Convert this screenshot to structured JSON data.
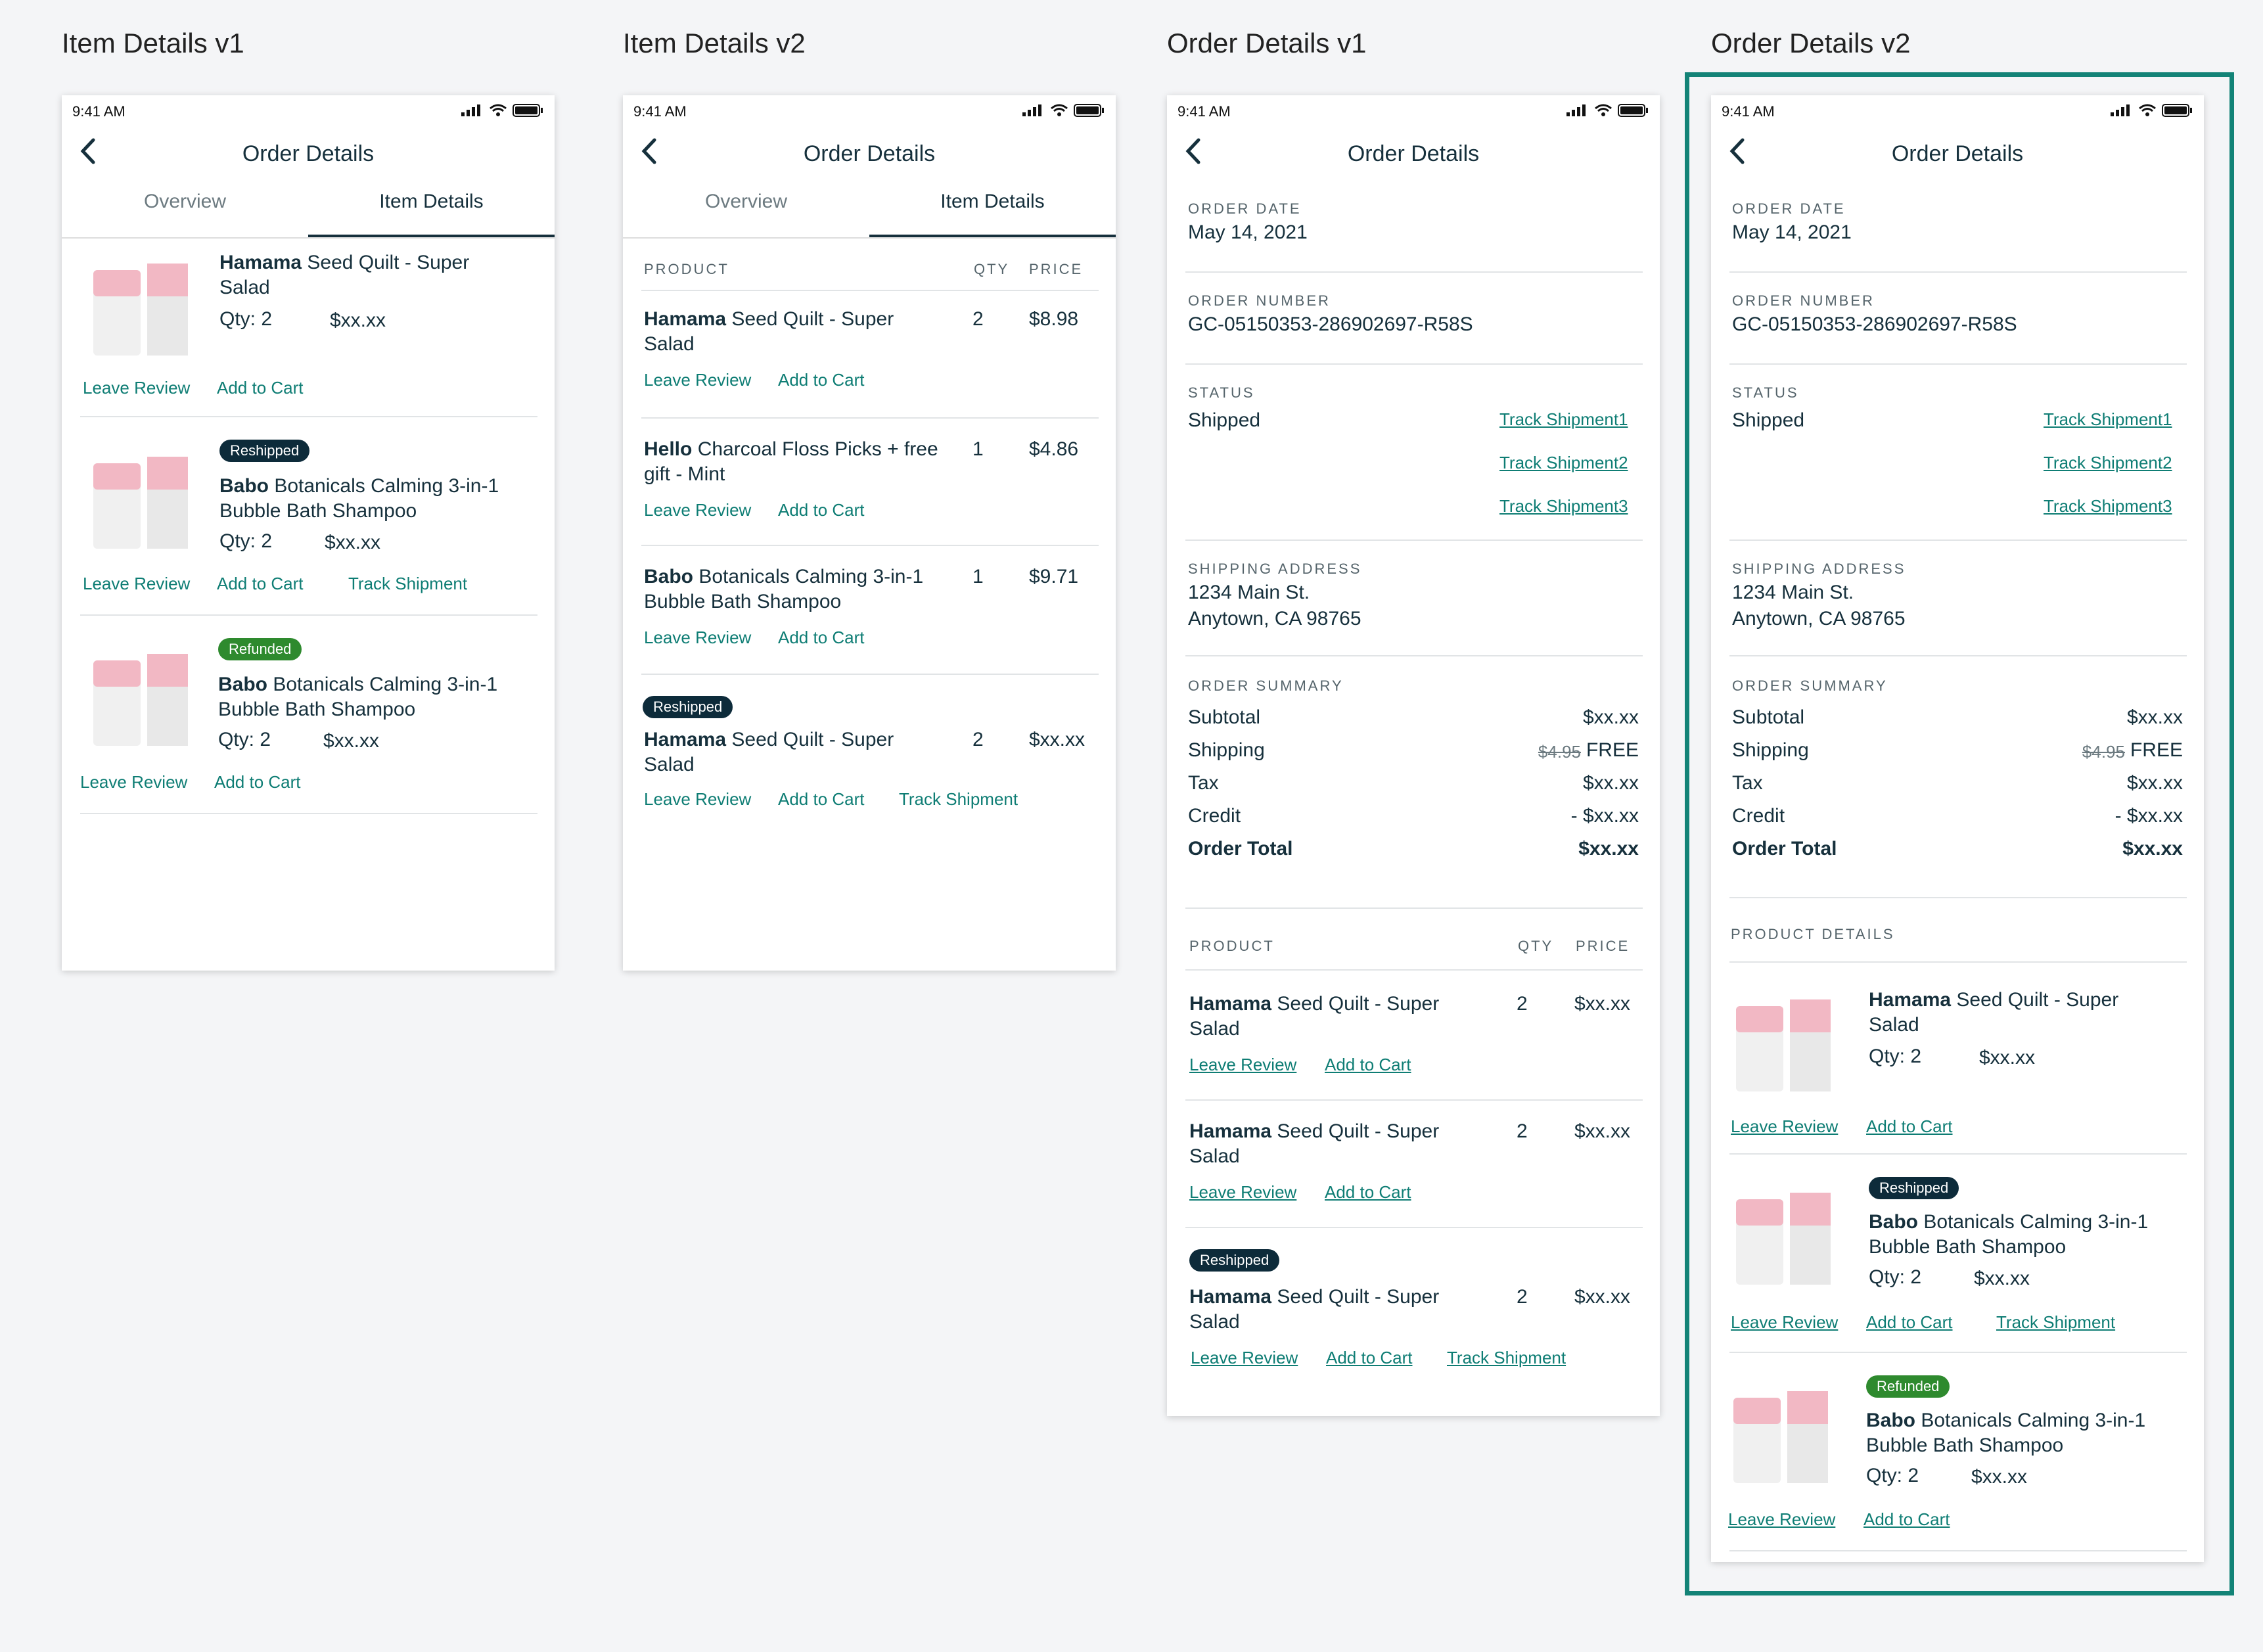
{
  "columns": [
    "Item Details v1",
    "Item Details v2",
    "Order Details v1",
    "Order Details v2"
  ],
  "status_time": "9:41 AM",
  "nav_title": "Order Details",
  "tabs": {
    "overview": "Overview",
    "items": "Item Details"
  },
  "links": {
    "review": "Leave Review",
    "cart": "Add to Cart",
    "track": "Track Shipment"
  },
  "badges": {
    "reshipped": "Reshipped",
    "refunded": "Refunded"
  },
  "headers": {
    "product": "PRODUCT",
    "qty": "QTY",
    "price": "PRICE",
    "product_details": "PRODUCT DETAILS"
  },
  "products": {
    "hamama": {
      "brand": "Hamama",
      "rest": " Seed Quilt - Super",
      "line2": "Salad"
    },
    "babo": {
      "brand": "Babo",
      "rest": " Botanicals Calming 3-in-1",
      "line2": "Bubble Bath Shampoo"
    },
    "hello": {
      "brand": "Hello",
      "rest": " Charcoal Floss Picks + free",
      "line2": "gift - Mint"
    }
  },
  "qty2": "Qty: 2",
  "price_xx": "$xx.xx",
  "v2_rows": [
    {
      "qty": "2",
      "price": "$8.98"
    },
    {
      "qty": "1",
      "price": "$4.86"
    },
    {
      "qty": "1",
      "price": "$9.71"
    },
    {
      "qty": "2",
      "price": "$xx.xx"
    }
  ],
  "order": {
    "date_label": "ORDER DATE",
    "date": "May 14, 2021",
    "number_label": "ORDER NUMBER",
    "number": "GC-05150353-286902697-R58S",
    "status_label": "STATUS",
    "status": "Shipped",
    "tracks": [
      "Track Shipment1",
      "Track Shipment2",
      "Track Shipment3"
    ],
    "address_label": "SHIPPING ADDRESS",
    "address1": "1234 Main St.",
    "address2": "Anytown, CA 98765",
    "summary_label": "ORDER SUMMARY",
    "subtotal": "Subtotal",
    "shipping": "Shipping",
    "tax": "Tax",
    "credit": "Credit",
    "total": "Order Total",
    "v_subtotal": "$xx.xx",
    "v_ship_old": "$4.95",
    "v_ship": "FREE",
    "v_tax": "$xx.xx",
    "v_credit": "- $xx.xx",
    "v_total": "$xx.xx"
  },
  "od1_rows": [
    {
      "qty": "2",
      "price": "$xx.xx"
    },
    {
      "qty": "2",
      "price": "$xx.xx"
    },
    {
      "qty": "2",
      "price": "$xx.xx"
    }
  ],
  "colors": {
    "accent": "#0e7d74",
    "dark": "#0d2b3a",
    "green": "#2e8a2e",
    "highlight": "#138377"
  },
  "icons": [
    "back-chevron-icon",
    "signal-icon",
    "wifi-icon",
    "battery-icon"
  ]
}
